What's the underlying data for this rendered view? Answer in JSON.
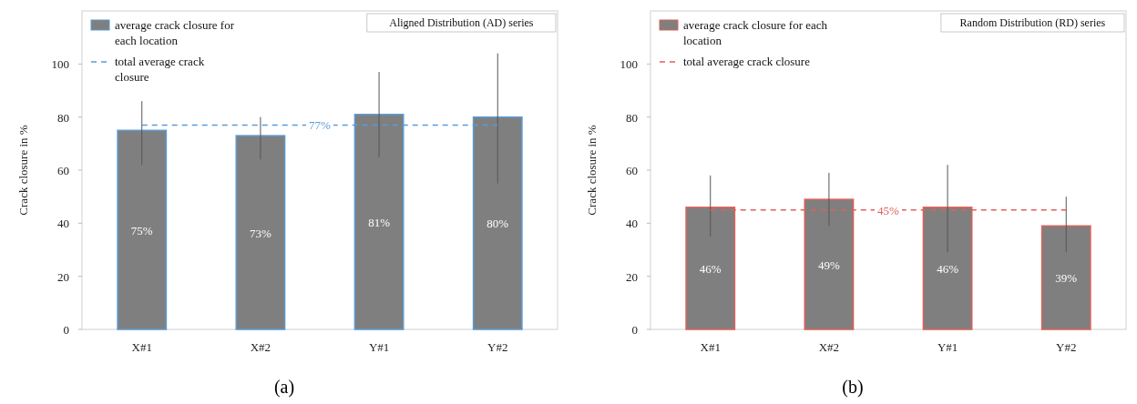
{
  "chart_data": [
    {
      "type": "bar",
      "title": "Aligned Distribution (AD) series",
      "ylabel": "Crack closure in %",
      "categories": [
        "X#1",
        "X#2",
        "Y#1",
        "Y#2"
      ],
      "ylim": [
        0,
        120
      ],
      "yticks": [
        0,
        20,
        40,
        60,
        80,
        100
      ],
      "legend": "top left",
      "annotations": [
        {
          "text": "77%",
          "y": 77
        },
        "(a)"
      ],
      "series": [
        {
          "name": "average crack closure for each location",
          "color": "#7f7f7f",
          "values": [
            75,
            73,
            81,
            80
          ],
          "value_labels": [
            "75%",
            "73%",
            "81%",
            "80%"
          ],
          "errors": [
            [
              62,
              86
            ],
            [
              64,
              80
            ],
            [
              65,
              97
            ],
            [
              55,
              104
            ]
          ]
        },
        {
          "name": "total average crack closure",
          "type": "line",
          "color": "#5b9bd5",
          "line_style": "dashed",
          "values": [
            77,
            77,
            77,
            77
          ]
        }
      ]
    },
    {
      "type": "bar",
      "title": "Random Distribution (RD) series",
      "ylabel": "Crack closure in %",
      "categories": [
        "X#1",
        "X#2",
        "Y#1",
        "Y#2"
      ],
      "ylim": [
        0,
        120
      ],
      "yticks": [
        0,
        20,
        40,
        60,
        80,
        100
      ],
      "legend": "top left",
      "annotations": [
        {
          "text": "45%",
          "y": 45
        },
        "(b)"
      ],
      "series": [
        {
          "name": "average crack closure for each location",
          "color": "#7f7f7f",
          "values": [
            46,
            49,
            46,
            39
          ],
          "value_labels": [
            "46%",
            "49%",
            "46%",
            "39%"
          ],
          "errors": [
            [
              35,
              58
            ],
            [
              39,
              59
            ],
            [
              29,
              62
            ],
            [
              29,
              50
            ]
          ]
        },
        {
          "name": "total average crack closure",
          "type": "line",
          "color": "#e0605a",
          "line_style": "dashed",
          "values": [
            45,
            45,
            45,
            45
          ]
        }
      ]
    }
  ]
}
